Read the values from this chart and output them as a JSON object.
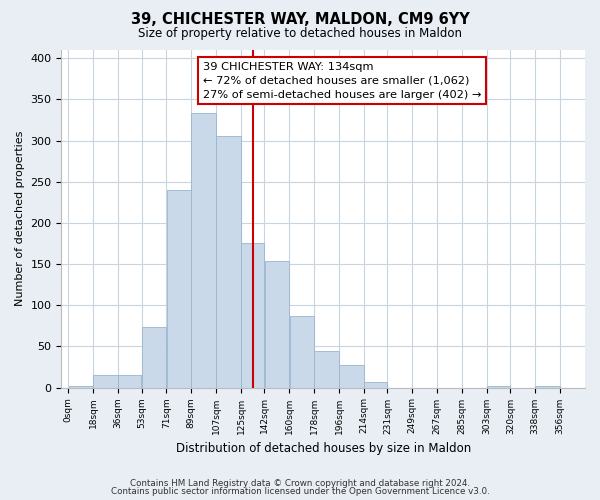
{
  "title": "39, CHICHESTER WAY, MALDON, CM9 6YY",
  "subtitle": "Size of property relative to detached houses in Maldon",
  "xlabel": "Distribution of detached houses by size in Maldon",
  "ylabel": "Number of detached properties",
  "bar_left_edges": [
    0,
    18,
    36,
    53,
    71,
    89,
    107,
    125,
    142,
    160,
    178,
    196,
    214,
    231,
    249,
    267,
    285,
    303,
    320,
    338
  ],
  "bar_widths": [
    18,
    18,
    17,
    18,
    18,
    18,
    18,
    17,
    18,
    18,
    18,
    18,
    17,
    18,
    18,
    18,
    18,
    17,
    18,
    18
  ],
  "bar_heights": [
    2,
    15,
    15,
    73,
    240,
    333,
    305,
    175,
    154,
    87,
    44,
    28,
    7,
    0,
    0,
    0,
    0,
    2,
    0,
    2
  ],
  "bar_color": "#c9d9ea",
  "bar_edge_color": "#9ab5cc",
  "vline_x": 134,
  "vline_color": "#cc0000",
  "annotation_line1": "39 CHICHESTER WAY: 134sqm",
  "annotation_line2": "← 72% of detached houses are smaller (1,062)",
  "annotation_line3": "27% of semi-detached houses are larger (402) →",
  "annotation_box_color": "#ffffff",
  "annotation_box_edge": "#cc0000",
  "tick_labels": [
    "0sqm",
    "18sqm",
    "36sqm",
    "53sqm",
    "71sqm",
    "89sqm",
    "107sqm",
    "125sqm",
    "142sqm",
    "160sqm",
    "178sqm",
    "196sqm",
    "214sqm",
    "231sqm",
    "249sqm",
    "267sqm",
    "285sqm",
    "303sqm",
    "320sqm",
    "338sqm",
    "356sqm"
  ],
  "tick_positions": [
    0,
    18,
    36,
    53,
    71,
    89,
    107,
    125,
    142,
    160,
    178,
    196,
    214,
    231,
    249,
    267,
    285,
    303,
    320,
    338,
    356
  ],
  "ytick_positions": [
    0,
    50,
    100,
    150,
    200,
    250,
    300,
    350,
    400
  ],
  "ylim": [
    0,
    410
  ],
  "xlim": [
    -5,
    374
  ],
  "footnote1": "Contains HM Land Registry data © Crown copyright and database right 2024.",
  "footnote2": "Contains public sector information licensed under the Open Government Licence v3.0.",
  "bg_color": "#e8eef4",
  "plot_bg_color": "#ffffff",
  "grid_color": "#c8d4de"
}
